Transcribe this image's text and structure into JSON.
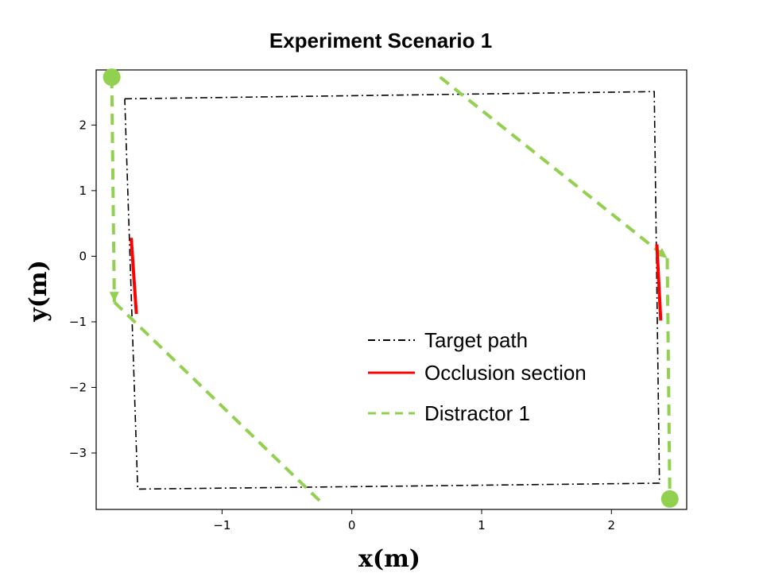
{
  "chart_data": {
    "type": "line",
    "title": "Experiment Scenario 1",
    "xlabel": "x(m)",
    "ylabel": "y(m)",
    "xlim": [
      -1.97,
      2.58
    ],
    "ylim": [
      -3.86,
      2.84
    ],
    "xticks": [
      -1,
      0,
      1,
      2
    ],
    "yticks": [
      2,
      1,
      0,
      -1,
      -2,
      -3
    ],
    "xtick_labels": [
      "−1",
      "0",
      "1",
      "2"
    ],
    "ytick_labels": [
      "2",
      "1",
      "0",
      "−1",
      "−2",
      "−3"
    ],
    "grid": false,
    "legend_position": "lower-right",
    "series": [
      {
        "name": "Target path",
        "style": "dash-dot",
        "color": "#000000",
        "x": [
          -1.75,
          2.33,
          2.37,
          -1.65,
          -1.75
        ],
        "y": [
          2.4,
          2.51,
          -3.46,
          -3.55,
          2.4
        ]
      },
      {
        "name": "Occlusion section",
        "style": "solid",
        "color": "#ff0000",
        "segments": [
          {
            "x": [
              -1.7,
              -1.66
            ],
            "y": [
              0.28,
              -0.88
            ]
          },
          {
            "x": [
              2.35,
              2.38
            ],
            "y": [
              0.18,
              -0.98
            ]
          }
        ]
      },
      {
        "name": "Distractor 1",
        "style": "dashed",
        "color": "#92d050",
        "segments": [
          {
            "x": [
              -1.85,
              -1.83
            ],
            "y": [
              2.73,
              -0.7
            ],
            "arrow_end": true
          },
          {
            "x": [
              -1.83,
              -0.21
            ],
            "y": [
              -0.7,
              -3.8
            ]
          },
          {
            "x": [
              0.68,
              2.43
            ],
            "y": [
              2.73,
              -0.03
            ],
            "arrow_end": true
          },
          {
            "x": [
              2.43,
              2.45
            ],
            "y": [
              -0.03,
              -3.7
            ]
          }
        ],
        "endpoints": [
          {
            "x": -1.85,
            "y": 2.73
          },
          {
            "x": 2.45,
            "y": -3.7
          }
        ]
      }
    ]
  }
}
